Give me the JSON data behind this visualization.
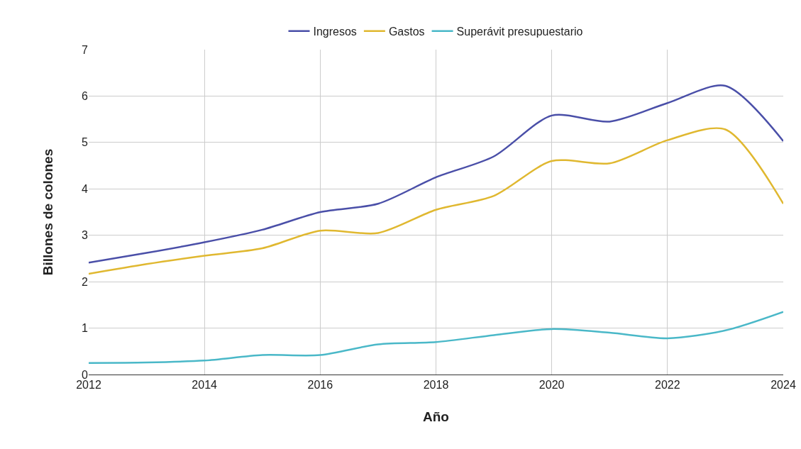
{
  "chart_data": {
    "type": "line",
    "xlabel": "Año",
    "ylabel": "Billones de colones",
    "x": [
      2012,
      2013,
      2014,
      2015,
      2016,
      2017,
      2018,
      2019,
      2020,
      2021,
      2022,
      2023,
      2024
    ],
    "series": [
      {
        "name": "Ingresos",
        "color": "#4a4fa8",
        "values": [
          2.41,
          2.62,
          2.85,
          3.12,
          3.5,
          3.68,
          4.25,
          4.7,
          5.58,
          5.45,
          5.85,
          6.22,
          5.03
        ]
      },
      {
        "name": "Gastos",
        "color": "#e0b830",
        "values": [
          2.17,
          2.38,
          2.56,
          2.72,
          3.1,
          3.05,
          3.55,
          3.85,
          4.6,
          4.55,
          5.05,
          5.28,
          3.68
        ]
      },
      {
        "name": "Superávit presupuestario",
        "color": "#4ab8c8",
        "values": [
          0.25,
          0.26,
          0.3,
          0.42,
          0.42,
          0.65,
          0.7,
          0.85,
          0.98,
          0.9,
          0.78,
          0.95,
          1.35
        ]
      }
    ],
    "xlim": [
      2012,
      2024
    ],
    "xticks": [
      2012,
      2014,
      2016,
      2018,
      2020,
      2022,
      2024
    ],
    "ylim": [
      0,
      7
    ],
    "yticks": [
      0,
      1,
      2,
      3,
      4,
      5,
      6,
      7
    ],
    "grid": true,
    "legend": "top",
    "marker": "none",
    "line_style": "solid"
  }
}
